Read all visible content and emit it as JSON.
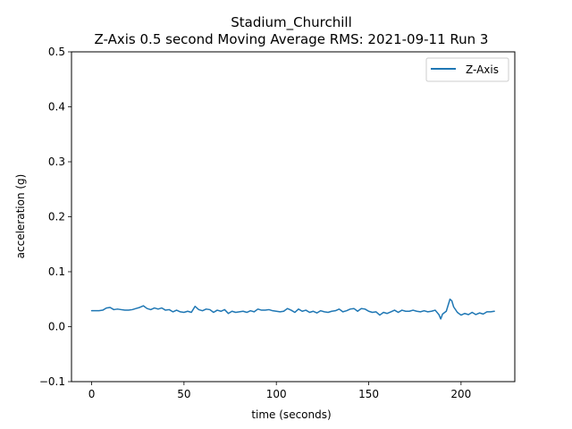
{
  "chart_data": {
    "type": "line",
    "title": "Stadium_Churchill",
    "subtitle": "Z-Axis 0.5 second Moving Average RMS: 2021-09-11 Run 3",
    "xlabel": "time (seconds)",
    "ylabel": "acceleration (g)",
    "xlim": [
      -10.9,
      229.1
    ],
    "ylim": [
      -0.1,
      0.5
    ],
    "xticks": [
      0,
      50,
      100,
      150,
      200
    ],
    "yticks": [
      -0.1,
      0.0,
      0.1,
      0.2,
      0.3,
      0.4,
      0.5
    ],
    "xtick_labels": [
      "0",
      "50",
      "100",
      "150",
      "200"
    ],
    "ytick_labels": [
      "−0.1",
      "0.0",
      "0.1",
      "0.2",
      "0.3",
      "0.4",
      "0.5"
    ],
    "grid": false,
    "legend": {
      "position": "upper right",
      "entries": [
        "Z-Axis"
      ]
    },
    "series": [
      {
        "name": "Z-Axis",
        "color": "#1f77b4",
        "x": [
          0,
          2,
          4,
          6,
          8,
          10,
          12,
          14,
          16,
          18,
          20,
          22,
          24,
          26,
          28,
          30,
          32,
          34,
          36,
          38,
          40,
          42,
          44,
          46,
          48,
          50,
          52,
          54,
          56,
          58,
          60,
          62,
          64,
          66,
          68,
          70,
          72,
          74,
          76,
          78,
          80,
          82,
          84,
          86,
          88,
          90,
          92,
          94,
          96,
          98,
          100,
          102,
          104,
          106,
          108,
          110,
          112,
          114,
          116,
          118,
          120,
          122,
          124,
          126,
          128,
          130,
          132,
          134,
          136,
          138,
          140,
          142,
          144,
          146,
          148,
          150,
          152,
          154,
          156,
          158,
          160,
          162,
          164,
          166,
          168,
          170,
          172,
          174,
          176,
          178,
          180,
          182,
          184,
          186,
          188,
          189,
          190,
          192,
          194,
          195,
          196,
          198,
          200,
          202,
          204,
          206,
          208,
          210,
          212,
          214,
          216,
          218
        ],
        "y": [
          0.029,
          0.029,
          0.029,
          0.03,
          0.034,
          0.035,
          0.031,
          0.032,
          0.031,
          0.03,
          0.03,
          0.031,
          0.033,
          0.035,
          0.038,
          0.033,
          0.031,
          0.034,
          0.032,
          0.034,
          0.03,
          0.031,
          0.027,
          0.03,
          0.027,
          0.026,
          0.028,
          0.026,
          0.037,
          0.031,
          0.029,
          0.032,
          0.031,
          0.026,
          0.03,
          0.028,
          0.031,
          0.024,
          0.028,
          0.026,
          0.027,
          0.028,
          0.026,
          0.029,
          0.027,
          0.032,
          0.03,
          0.03,
          0.031,
          0.029,
          0.028,
          0.027,
          0.028,
          0.033,
          0.03,
          0.026,
          0.032,
          0.028,
          0.03,
          0.026,
          0.028,
          0.025,
          0.029,
          0.027,
          0.026,
          0.028,
          0.029,
          0.032,
          0.027,
          0.029,
          0.032,
          0.033,
          0.028,
          0.033,
          0.032,
          0.028,
          0.026,
          0.027,
          0.021,
          0.026,
          0.024,
          0.027,
          0.03,
          0.026,
          0.03,
          0.028,
          0.028,
          0.03,
          0.028,
          0.027,
          0.029,
          0.027,
          0.028,
          0.03,
          0.022,
          0.014,
          0.023,
          0.028,
          0.05,
          0.047,
          0.036,
          0.026,
          0.021,
          0.024,
          0.022,
          0.026,
          0.022,
          0.025,
          0.023,
          0.027,
          0.027,
          0.028
        ]
      }
    ]
  }
}
